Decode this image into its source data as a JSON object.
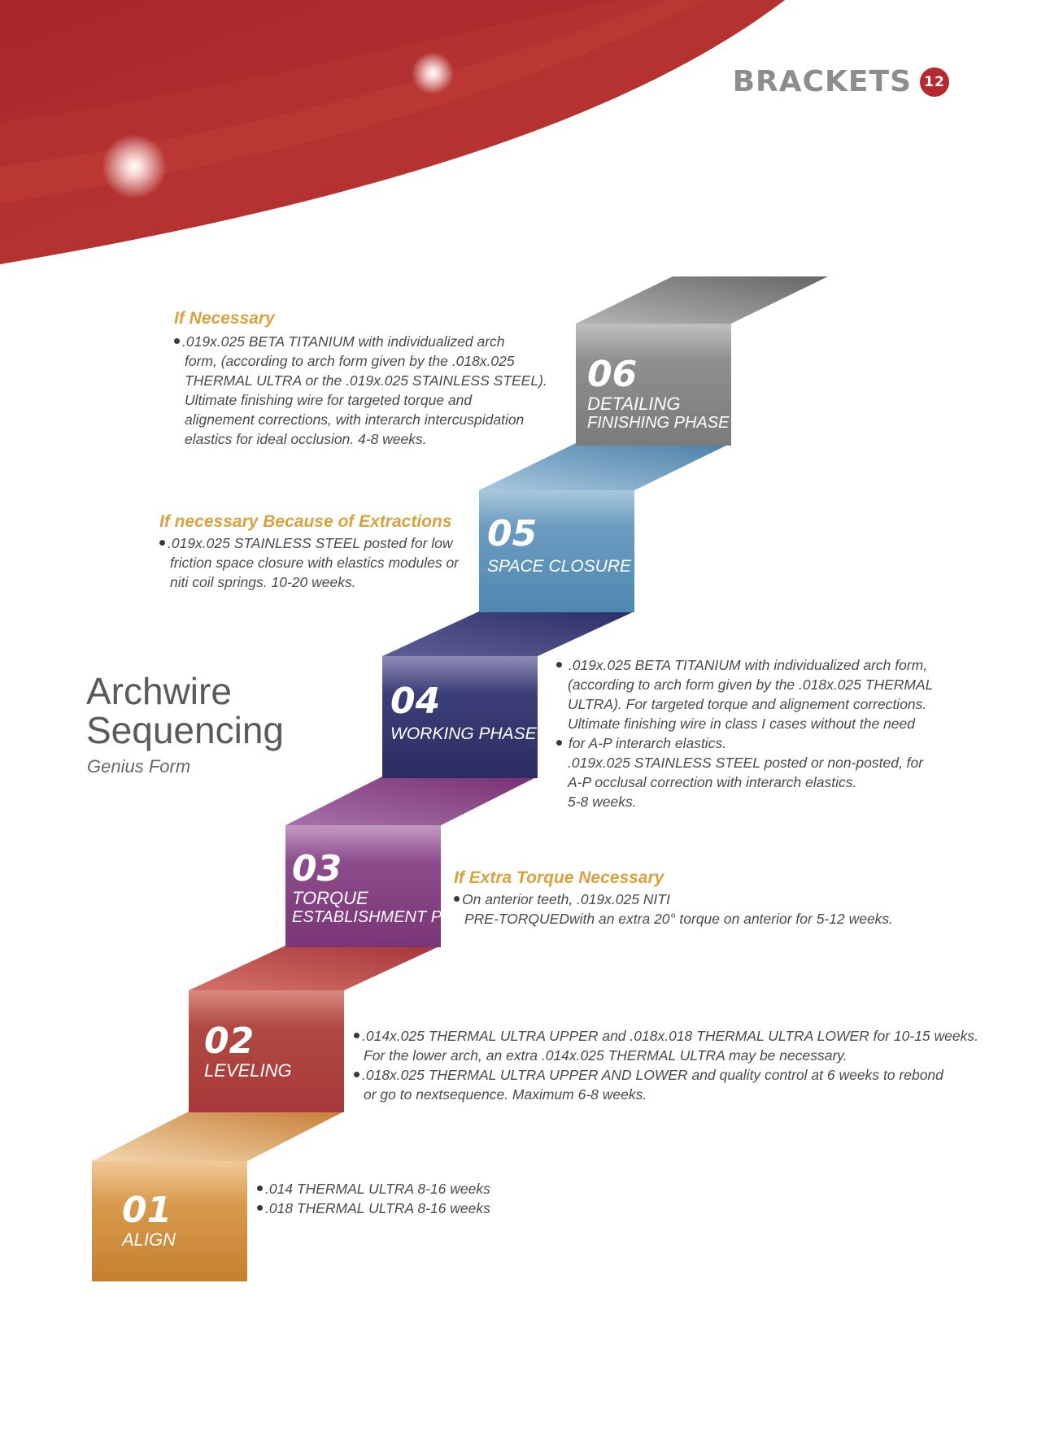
{
  "header": {
    "section": "BRACKETS",
    "page_number": "12"
  },
  "title": {
    "line1": "Archwire",
    "line2": "Sequencing",
    "subtitle": "Genius Form"
  },
  "steps": [
    {
      "number": "01",
      "label": "ALIGN",
      "label2": ""
    },
    {
      "number": "02",
      "label": "LEVELING",
      "label2": ""
    },
    {
      "number": "03",
      "label": "TORQUE",
      "label2": "ESTABLISHMENT PHASE"
    },
    {
      "number": "04",
      "label": "WORKING PHASE",
      "label2": ""
    },
    {
      "number": "05",
      "label": "SPACE CLOSURE",
      "label2": ""
    },
    {
      "number": "06",
      "label": "DETAILING",
      "label2": "FINISHING PHASE"
    }
  ],
  "notes": {
    "step06": {
      "heading": "If Necessary",
      "lines": [
        ".019x.025 BETA TITANIUM with individualized arch",
        "form, (according to arch form given by the .018x.025",
        "THERMAL ULTRA or the .019x.025 STAINLESS STEEL).",
        "Ultimate finishing wire for targeted torque and",
        "alignement corrections, with interarch intercuspidation",
        "elastics for ideal occlusion. 4-8 weeks."
      ]
    },
    "step05": {
      "heading": "If necessary Because of Extractions",
      "lines": [
        ".019x.025 STAINLESS STEEL posted for low",
        "friction space closure with elastics modules or",
        "niti coil springs. 10-20 weeks."
      ]
    },
    "step04": {
      "lines": [
        ".019x.025 BETA TITANIUM with individualized arch form,",
        "(according to arch form given by the .018x.025 THERMAL",
        "ULTRA). For targeted torque and alignement corrections.",
        "Ultimate finishing wire in class I cases without the need",
        "for A-P interarch elastics.",
        ".019x.025 STAINLESS STEEL posted or non-posted, for",
        "A-P occlusal correction with interarch elastics.",
        "5-8 weeks."
      ]
    },
    "step03": {
      "heading": "If Extra Torque Necessary",
      "lines": [
        "On anterior teeth, .019x.025 NITI",
        "PRE-TORQUEDwith an extra 20° torque on anterior for 5-12 weeks."
      ]
    },
    "step02": {
      "lines": [
        ".014x.025 THERMAL ULTRA UPPER and .018x.018 THERMAL ULTRA LOWER for 10-15 weeks.",
        "For the lower arch, an extra .014x.025 THERMAL ULTRA may be necessary.",
        ".018x.025 THERMAL ULTRA UPPER AND LOWER and quality control at 6 weeks to rebond",
        "or go to nextsequence. Maximum 6-8 weeks."
      ]
    },
    "step01": {
      "lines": [
        ".014 THERMAL ULTRA 8-16 weeks",
        ".018 THERMAL ULTRA 8-16 weeks"
      ]
    }
  }
}
